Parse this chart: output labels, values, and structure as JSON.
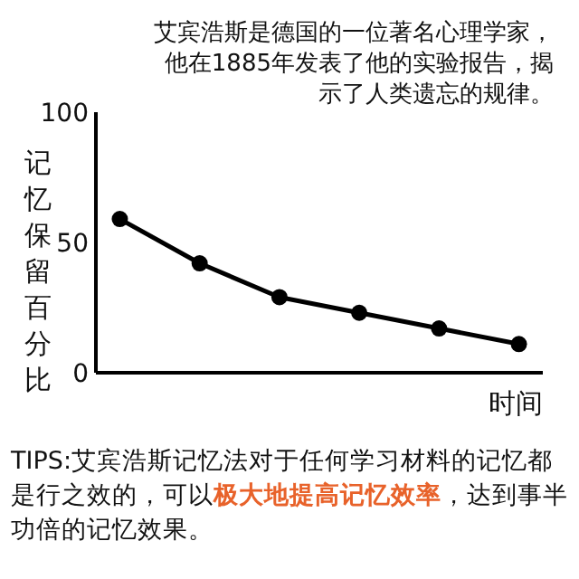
{
  "chart_data": {
    "type": "line",
    "title": "艾宾浩斯是德国的一位著名心理学家，他在1885年发表了他的实验报告，揭示了人类遗忘的规律。",
    "xlabel": "时间",
    "ylabel": "记忆保留百分比",
    "categories": [
      null,
      null,
      null,
      null,
      null,
      null
    ],
    "series": [
      {
        "color": "#000000",
        "values": [
          59,
          42,
          29,
          23,
          17,
          11
        ]
      }
    ],
    "ylim": [
      0,
      100
    ],
    "yticks": [
      0,
      50,
      100
    ],
    "tick_labels": "y",
    "marker": "circle",
    "line_style": "solid",
    "grid": false,
    "annotations": [
      "TIPS:艾宾浩斯记忆法对于任何学习材料的记忆都是行之效的，可以",
      "极大地提高记忆效率",
      "，达到事半功倍的记忆效果。"
    ]
  }
}
